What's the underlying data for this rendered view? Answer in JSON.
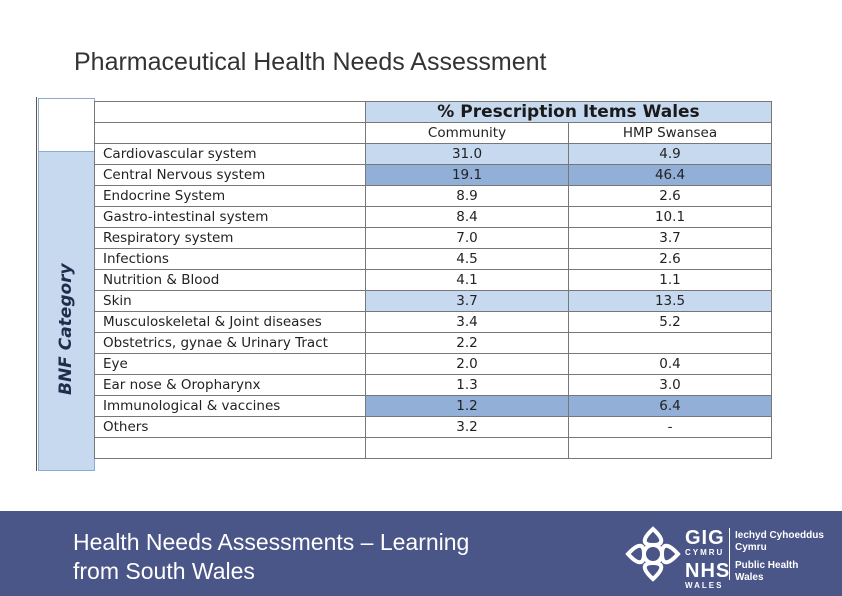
{
  "slide": {
    "title": "Pharmaceutical Health Needs Assessment"
  },
  "table": {
    "side_label": "BNF Category",
    "main_header": "% Prescription Items Wales",
    "columns": [
      "Community",
      "HMP Swansea"
    ],
    "rows": [
      {
        "category": "Cardiovascular system",
        "community": "31.0",
        "hmp": "4.9",
        "highlight": "light"
      },
      {
        "category": "Central Nervous system",
        "community": "19.1",
        "hmp": "46.4",
        "highlight": "dark"
      },
      {
        "category": "Endocrine System",
        "community": "8.9",
        "hmp": "2.6",
        "highlight": "none"
      },
      {
        "category": "Gastro-intestinal system",
        "community": "8.4",
        "hmp": "10.1",
        "highlight": "none"
      },
      {
        "category": "Respiratory system",
        "community": "7.0",
        "hmp": "3.7",
        "highlight": "none"
      },
      {
        "category": "Infections",
        "community": "4.5",
        "hmp": "2.6",
        "highlight": "none"
      },
      {
        "category": "Nutrition & Blood",
        "community": "4.1",
        "hmp": "1.1",
        "highlight": "none"
      },
      {
        "category": "Skin",
        "community": "3.7",
        "hmp": "13.5",
        "highlight": "light"
      },
      {
        "category": "Musculoskeletal & Joint diseases",
        "community": "3.4",
        "hmp": "5.2",
        "highlight": "none"
      },
      {
        "category": "Obstetrics, gynae & Urinary Tract",
        "community": "2.2",
        "hmp": "",
        "highlight": "none"
      },
      {
        "category": "Eye",
        "community": "2.0",
        "hmp": "0.4",
        "highlight": "none"
      },
      {
        "category": "Ear nose & Oropharynx",
        "community": "1.3",
        "hmp": "3.0",
        "highlight": "none"
      },
      {
        "category": "Immunological & vaccines",
        "community": "1.2",
        "hmp": "6.4",
        "highlight": "dark"
      },
      {
        "category": "Others",
        "community": "3.2",
        "hmp": "-",
        "highlight": "none"
      }
    ]
  },
  "footer": {
    "text_line1": "Health Needs Assessments – Learning",
    "text_line2": "from South Wales",
    "logo": {
      "gig": "GIG",
      "cymru": "CYMRU",
      "nhs": "NHS",
      "wales": "WALES",
      "welsh_line1": "Iechyd Cyhoeddus",
      "welsh_line2": "Cymru",
      "english_line1": "Public Health",
      "english_line2": "Wales"
    }
  },
  "colors": {
    "highlight_light": "#c6d9ef",
    "highlight_dark": "#92afd8",
    "footer_bg": "#4a5588"
  }
}
